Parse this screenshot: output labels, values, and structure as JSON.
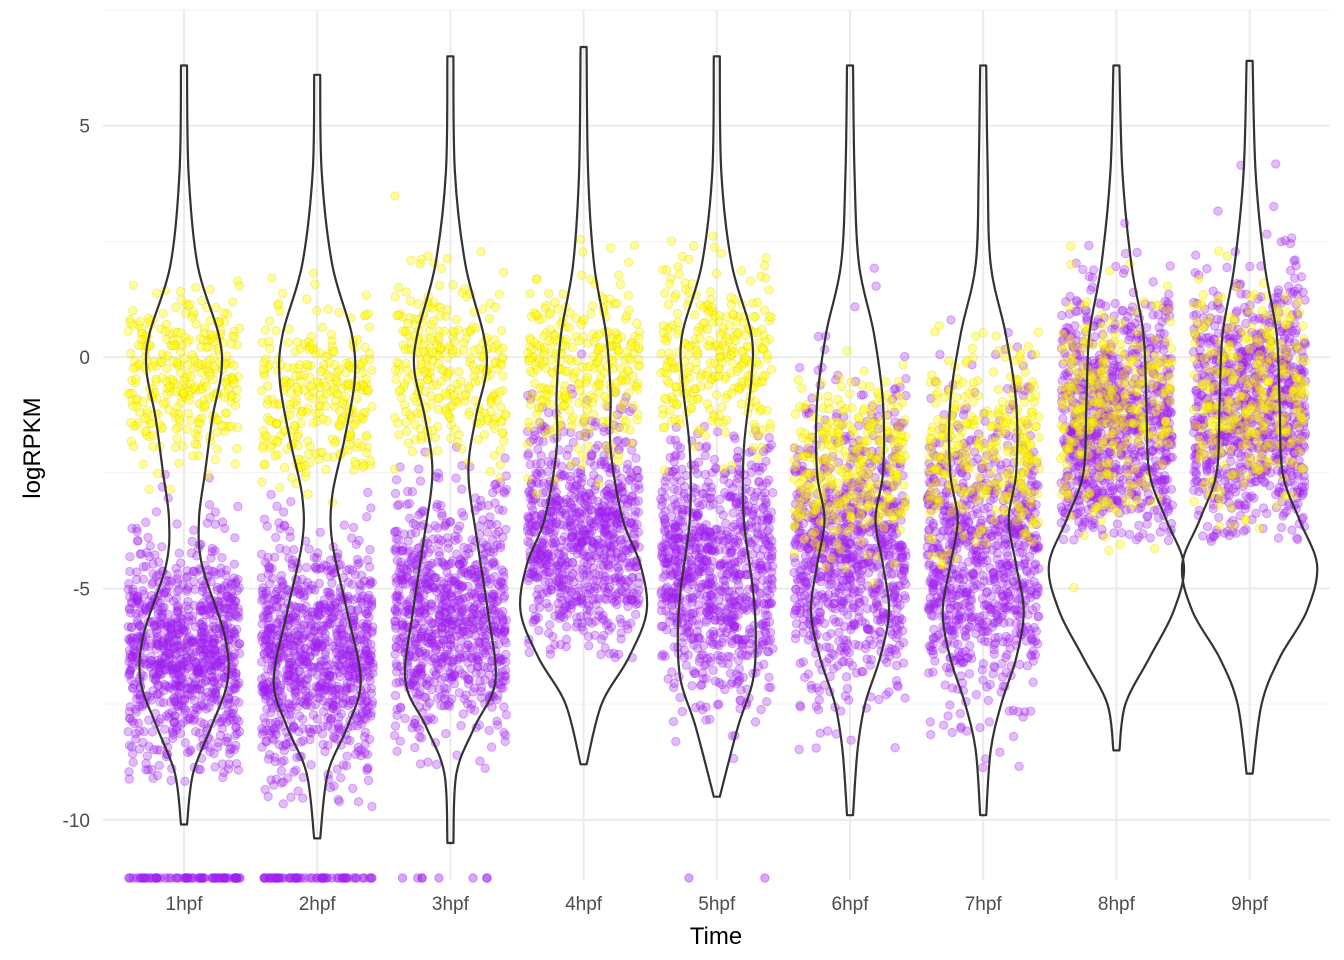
{
  "chart_data": {
    "type": "violin",
    "xlabel": "Time",
    "ylabel": "logRPKM",
    "categories": [
      "1hpf",
      "2hpf",
      "3hpf",
      "4hpf",
      "5hpf",
      "6hpf",
      "7hpf",
      "8hpf",
      "9hpf"
    ],
    "ylim": [
      -11.3,
      7.5
    ],
    "yticks": [
      5,
      0,
      -5,
      -10
    ],
    "ytick_labels": [
      "5",
      "0",
      "-5",
      "-10"
    ],
    "grid": true,
    "colors": {
      "violin": "#333333",
      "point_purple": "#A020F0",
      "point_yellow": "#FFFF00",
      "grid": "#EBEBEB"
    },
    "violins": [
      {
        "category": "1hpf",
        "max": 6.3,
        "min": -10.1,
        "density": [
          [
            6.3,
            0.02
          ],
          [
            4,
            0.03
          ],
          [
            2,
            0.09
          ],
          [
            0.5,
            0.23
          ],
          [
            -0.3,
            0.25
          ],
          [
            -1.3,
            0.19
          ],
          [
            -2.5,
            0.14
          ],
          [
            -3.5,
            0.1
          ],
          [
            -4.5,
            0.12
          ],
          [
            -6,
            0.27
          ],
          [
            -7,
            0.29
          ],
          [
            -8,
            0.18
          ],
          [
            -9,
            0.06
          ],
          [
            -10.1,
            0.02
          ]
        ]
      },
      {
        "category": "2hpf",
        "max": 6.1,
        "min": -10.4,
        "density": [
          [
            6.1,
            0.02
          ],
          [
            4,
            0.03
          ],
          [
            2,
            0.1
          ],
          [
            0.5,
            0.23
          ],
          [
            -0.5,
            0.25
          ],
          [
            -1.8,
            0.18
          ],
          [
            -3,
            0.1
          ],
          [
            -4,
            0.1
          ],
          [
            -5.5,
            0.2
          ],
          [
            -7,
            0.29
          ],
          [
            -8,
            0.2
          ],
          [
            -9,
            0.07
          ],
          [
            -10.4,
            0.02
          ]
        ]
      },
      {
        "category": "3hpf",
        "max": 6.5,
        "min": -10.5,
        "density": [
          [
            6.5,
            0.02
          ],
          [
            4,
            0.03
          ],
          [
            2,
            0.1
          ],
          [
            0.5,
            0.22
          ],
          [
            -0.3,
            0.24
          ],
          [
            -1.3,
            0.17
          ],
          [
            -2.5,
            0.12
          ],
          [
            -4,
            0.18
          ],
          [
            -5.5,
            0.25
          ],
          [
            -7,
            0.3
          ],
          [
            -8,
            0.16
          ],
          [
            -9,
            0.04
          ],
          [
            -10.5,
            0.02
          ]
        ]
      },
      {
        "category": "4hpf",
        "max": 6.7,
        "min": -8.8,
        "density": [
          [
            6.7,
            0.02
          ],
          [
            4,
            0.03
          ],
          [
            2,
            0.07
          ],
          [
            0.5,
            0.15
          ],
          [
            -0.8,
            0.18
          ],
          [
            -2,
            0.18
          ],
          [
            -3.5,
            0.26
          ],
          [
            -4.5,
            0.38
          ],
          [
            -5.5,
            0.42
          ],
          [
            -6.5,
            0.3
          ],
          [
            -7.5,
            0.12
          ],
          [
            -8.8,
            0.02
          ]
        ]
      },
      {
        "category": "5hpf",
        "max": 6.5,
        "min": -9.5,
        "density": [
          [
            6.5,
            0.02
          ],
          [
            4,
            0.03
          ],
          [
            2,
            0.1
          ],
          [
            0.5,
            0.23
          ],
          [
            -0.5,
            0.23
          ],
          [
            -2,
            0.18
          ],
          [
            -3.5,
            0.18
          ],
          [
            -5,
            0.24
          ],
          [
            -6,
            0.26
          ],
          [
            -7,
            0.24
          ],
          [
            -8,
            0.14
          ],
          [
            -9.5,
            0.02
          ]
        ]
      },
      {
        "category": "6hpf",
        "max": 6.3,
        "min": -9.9,
        "density": [
          [
            6.3,
            0.02
          ],
          [
            4,
            0.03
          ],
          [
            2,
            0.06
          ],
          [
            0.5,
            0.16
          ],
          [
            -1,
            0.22
          ],
          [
            -2.5,
            0.22
          ],
          [
            -3.5,
            0.17
          ],
          [
            -4.5,
            0.22
          ],
          [
            -5.5,
            0.26
          ],
          [
            -6.5,
            0.2
          ],
          [
            -7.5,
            0.1
          ],
          [
            -8.5,
            0.05
          ],
          [
            -9.9,
            0.02
          ]
        ]
      },
      {
        "category": "7hpf",
        "max": 6.3,
        "min": -9.9,
        "density": [
          [
            6.3,
            0.02
          ],
          [
            4,
            0.03
          ],
          [
            2,
            0.05
          ],
          [
            0.5,
            0.15
          ],
          [
            -1,
            0.22
          ],
          [
            -2.5,
            0.22
          ],
          [
            -3.5,
            0.17
          ],
          [
            -4.5,
            0.22
          ],
          [
            -5.5,
            0.27
          ],
          [
            -6.5,
            0.22
          ],
          [
            -7.5,
            0.12
          ],
          [
            -8.5,
            0.05
          ],
          [
            -9.9,
            0.02
          ]
        ]
      },
      {
        "category": "8hpf",
        "max": 6.3,
        "min": -8.5,
        "density": [
          [
            6.3,
            0.02
          ],
          [
            4,
            0.04
          ],
          [
            2,
            0.1
          ],
          [
            0.5,
            0.18
          ],
          [
            -1,
            0.2
          ],
          [
            -2.5,
            0.22
          ],
          [
            -3.5,
            0.33
          ],
          [
            -4.5,
            0.45
          ],
          [
            -5.5,
            0.38
          ],
          [
            -6.5,
            0.22
          ],
          [
            -7.5,
            0.06
          ],
          [
            -8.5,
            0.02
          ]
        ]
      },
      {
        "category": "9hpf",
        "max": 6.4,
        "min": -9.0,
        "density": [
          [
            6.4,
            0.02
          ],
          [
            4,
            0.04
          ],
          [
            2,
            0.1
          ],
          [
            0.5,
            0.18
          ],
          [
            -1,
            0.2
          ],
          [
            -2.5,
            0.22
          ],
          [
            -3.5,
            0.33
          ],
          [
            -4.5,
            0.45
          ],
          [
            -5.5,
            0.38
          ],
          [
            -6.5,
            0.2
          ],
          [
            -7.5,
            0.08
          ],
          [
            -9.0,
            0.02
          ]
        ]
      }
    ],
    "points": [
      {
        "category": "1hpf",
        "n_purple": 900,
        "n_yellow": 320,
        "purple_mean": -6.4,
        "purple_sd": 1.2,
        "purple_min": -9.2,
        "purple_max": -2.3,
        "yellow_mean": -0.5,
        "yellow_sd": 0.9,
        "yellow_min": -3.0,
        "yellow_max": 3.0,
        "floor_n": 70
      },
      {
        "category": "2hpf",
        "n_purple": 900,
        "n_yellow": 300,
        "purple_mean": -6.5,
        "purple_sd": 1.3,
        "purple_min": -9.9,
        "purple_max": -2.6,
        "yellow_mean": -0.8,
        "yellow_sd": 1.0,
        "yellow_min": -3.3,
        "yellow_max": 2.9,
        "floor_n": 60
      },
      {
        "category": "3hpf",
        "n_purple": 850,
        "n_yellow": 300,
        "purple_mean": -5.6,
        "purple_sd": 1.3,
        "purple_min": -9.0,
        "purple_max": -1.8,
        "yellow_mean": -0.3,
        "yellow_sd": 1.0,
        "yellow_min": -2.7,
        "yellow_max": 3.9,
        "floor_n": 8
      },
      {
        "category": "4hpf",
        "n_purple": 800,
        "n_yellow": 300,
        "purple_mean": -3.9,
        "purple_sd": 1.2,
        "purple_min": -6.5,
        "purple_max": 2.4,
        "yellow_mean": -0.2,
        "yellow_sd": 1.0,
        "yellow_min": -3.0,
        "yellow_max": 3.3,
        "floor_n": 0
      },
      {
        "category": "5hpf",
        "n_purple": 850,
        "n_yellow": 300,
        "purple_mean": -4.6,
        "purple_sd": 1.4,
        "purple_min": -9.0,
        "purple_max": -1.5,
        "yellow_mean": 0.0,
        "yellow_sd": 1.0,
        "yellow_min": -2.5,
        "yellow_max": 3.6,
        "floor_n": 2
      },
      {
        "category": "6hpf",
        "n_purple": 850,
        "n_yellow": 300,
        "purple_mean": -4.2,
        "purple_sd": 1.6,
        "purple_min": -8.5,
        "purple_max": 2.0,
        "yellow_mean": -2.3,
        "yellow_sd": 1.0,
        "yellow_min": -5.0,
        "yellow_max": 1.5,
        "floor_n": 0
      },
      {
        "category": "7hpf",
        "n_purple": 850,
        "n_yellow": 300,
        "purple_mean": -4.3,
        "purple_sd": 1.6,
        "purple_min": -8.9,
        "purple_max": 1.5,
        "yellow_mean": -2.0,
        "yellow_sd": 1.1,
        "yellow_min": -4.5,
        "yellow_max": 2.0,
        "floor_n": 0
      },
      {
        "category": "8hpf",
        "n_purple": 850,
        "n_yellow": 300,
        "purple_mean": -1.5,
        "purple_sd": 1.4,
        "purple_min": -4.0,
        "purple_max": 4.6,
        "yellow_mean": -1.0,
        "yellow_sd": 1.2,
        "yellow_min": -5.6,
        "yellow_max": 2.6,
        "floor_n": 0
      },
      {
        "category": "9hpf",
        "n_purple": 850,
        "n_yellow": 300,
        "purple_mean": -1.2,
        "purple_sd": 1.5,
        "purple_min": -4.0,
        "purple_max": 4.6,
        "yellow_mean": -0.8,
        "yellow_sd": 1.2,
        "yellow_min": -6.0,
        "yellow_max": 3.0,
        "floor_n": 0
      }
    ]
  }
}
